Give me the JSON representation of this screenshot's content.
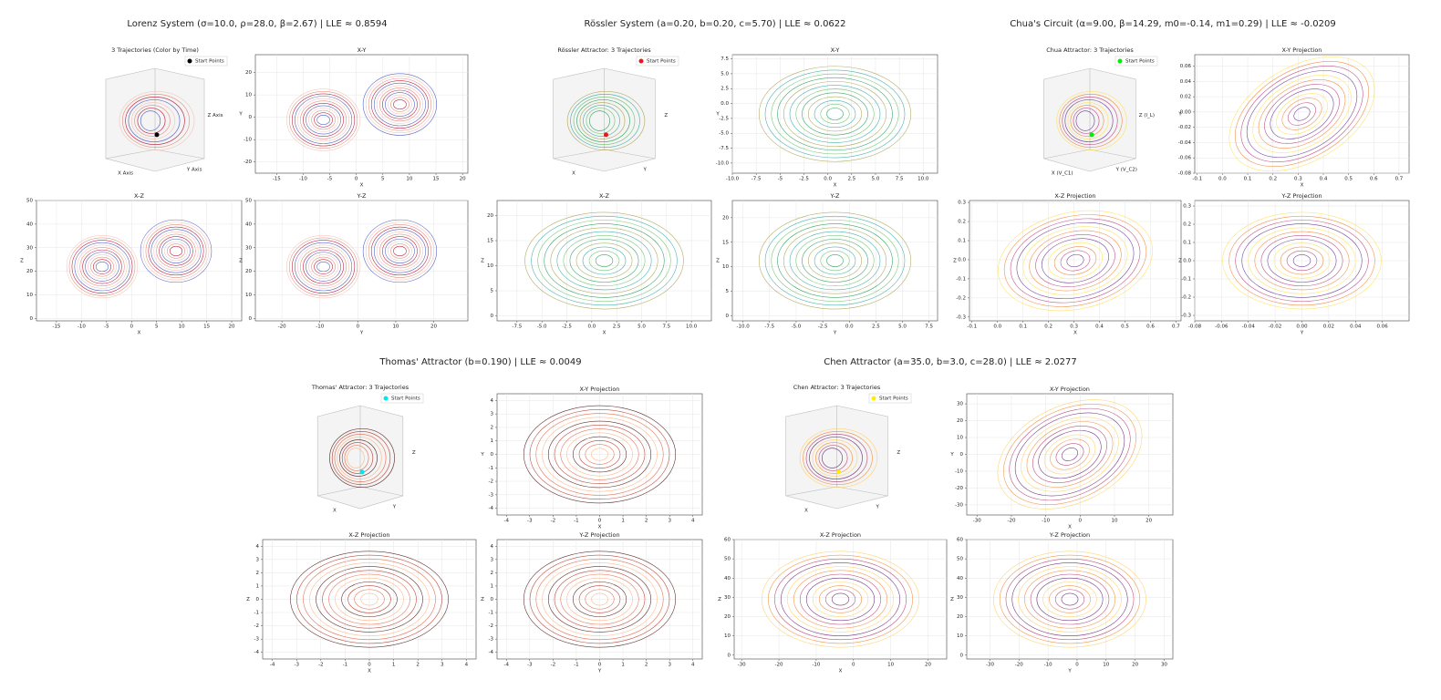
{
  "chart_data": [
    {
      "type": "line",
      "title": "Lorenz System (σ=10.0, ρ=28.0, β=2.67) | LLE ≈ 0.8594",
      "panels": [
        {
          "kind": "3d",
          "title": "3 Trajectories (Color by Time)",
          "legend": "Start Points",
          "start_color": "#000000",
          "xlabel": "X Axis",
          "ylabel": "Y Axis",
          "zlabel": "Z Axis"
        },
        {
          "kind": "2d",
          "title": "X-Y",
          "xlabel": "X",
          "ylabel": "Y",
          "xlim": [
            -19,
            21
          ],
          "ylim": [
            -25,
            28
          ],
          "xticks": [
            -15,
            -10,
            -5,
            0,
            5,
            10,
            15,
            20
          ],
          "yticks": [
            -20,
            -10,
            0,
            10,
            20
          ]
        },
        {
          "kind": "2d",
          "title": "X-Z",
          "xlabel": "X",
          "ylabel": "Z",
          "xlim": [
            -19,
            22
          ],
          "ylim": [
            -1,
            50
          ],
          "xticks": [
            -15,
            -10,
            -5,
            0,
            5,
            10,
            15,
            20
          ],
          "yticks": [
            0,
            10,
            20,
            30,
            40,
            50
          ]
        },
        {
          "kind": "2d",
          "title": "Y-Z",
          "xlabel": "Y",
          "ylabel": "Z",
          "xlim": [
            -27,
            29
          ],
          "ylim": [
            -1,
            50
          ],
          "xticks": [
            -20,
            -10,
            0,
            10,
            20
          ],
          "yticks": [
            0,
            10,
            20,
            30,
            40,
            50
          ]
        }
      ]
    },
    {
      "type": "line",
      "title": "Rössler System (a=0.20, b=0.20, c=5.70) | LLE ≈ 0.0622",
      "panels": [
        {
          "kind": "3d",
          "title": "Rössler Attractor: 3 Trajectories",
          "legend": "Start Points",
          "start_color": "#e41a1c",
          "xlabel": "X",
          "ylabel": "Y",
          "zlabel": "Z"
        },
        {
          "kind": "2d",
          "title": "X-Y",
          "xlabel": "X",
          "ylabel": "Y",
          "xlim": [
            -10,
            11.5
          ],
          "ylim": [
            -11.7,
            8.2
          ],
          "xticks": [
            {
              "value": -10,
              "label": "-10.0"
            },
            -7.5,
            -5,
            -2.5,
            {
              "value": 0,
              "label": "0.0"
            },
            2.5,
            {
              "value": 5,
              "label": "5.0"
            },
            7.5,
            {
              "value": 10,
              "label": "10.0"
            }
          ],
          "yticks": [
            {
              "value": -10,
              "label": "-10.0"
            },
            -7.5,
            {
              "value": -5,
              "label": "-5.0"
            },
            -2.5,
            {
              "value": 0,
              "label": "0.0"
            },
            2.5,
            {
              "value": 5,
              "label": "5.0"
            },
            7.5
          ]
        },
        {
          "kind": "2d",
          "title": "X-Z",
          "xlabel": "X",
          "ylabel": "Z",
          "xlim": [
            -9.5,
            12
          ],
          "ylim": [
            -1,
            23
          ],
          "xticks": [
            -7.5,
            {
              "value": -5,
              "label": "-5.0"
            },
            -2.5,
            {
              "value": 0,
              "label": "0.0"
            },
            2.5,
            {
              "value": 5,
              "label": "5.0"
            },
            7.5,
            {
              "value": 10,
              "label": "10.0"
            }
          ],
          "yticks": [
            0,
            5,
            10,
            15,
            20
          ]
        },
        {
          "kind": "2d",
          "title": "Y-Z",
          "xlabel": "Y",
          "ylabel": "Z",
          "xlim": [
            -11,
            8.3
          ],
          "ylim": [
            -1,
            23.5
          ],
          "xticks": [
            {
              "value": -10,
              "label": "-10.0"
            },
            -7.5,
            {
              "value": -5,
              "label": "-5.0"
            },
            -2.5,
            {
              "value": 0,
              "label": "0.0"
            },
            2.5,
            {
              "value": 5,
              "label": "5.0"
            },
            7.5
          ],
          "yticks": [
            0,
            5,
            10,
            15,
            20
          ]
        }
      ]
    },
    {
      "type": "line",
      "title": "Chua's Circuit (α=9.00, β=14.29, m0=-0.14, m1=0.29) | LLE ≈ -0.0209",
      "panels": [
        {
          "kind": "3d",
          "title": "Chua Attractor: 3 Trajectories",
          "legend": "Start Points",
          "start_color": "#00ee00",
          "xlabel": "X (V_C1)",
          "ylabel": "Y (V_C2)",
          "zlabel": "Z (I_L)"
        },
        {
          "kind": "2d",
          "title": "X-Y Projection",
          "xlabel": "X",
          "ylabel": "Y",
          "xlim": [
            -0.11,
            0.74
          ],
          "ylim": [
            -0.08,
            0.075
          ],
          "xticks": [
            -0.1,
            {
              "value": 0,
              "label": "0.0"
            },
            0.1,
            0.2,
            0.3,
            0.4,
            0.5,
            0.6,
            0.7
          ],
          "yticks": [
            -0.08,
            -0.06,
            -0.04,
            -0.02,
            {
              "value": 0,
              "label": "0.00"
            },
            0.02,
            0.04,
            0.06
          ]
        },
        {
          "kind": "2d",
          "title": "X-Z Projection",
          "xlabel": "X",
          "ylabel": "Z",
          "xlim": [
            -0.11,
            0.72
          ],
          "ylim": [
            -0.32,
            0.31
          ],
          "xticks": [
            -0.1,
            {
              "value": 0,
              "label": "0.0"
            },
            0.1,
            0.2,
            0.3,
            0.4,
            0.5,
            0.6,
            0.7
          ],
          "yticks": [
            -0.3,
            -0.2,
            -0.1,
            {
              "value": 0,
              "label": "0.0"
            },
            0.1,
            0.2,
            0.3
          ]
        },
        {
          "kind": "2d",
          "title": "Y-Z Projection",
          "xlabel": "Y",
          "ylabel": "Z",
          "xlim": [
            -0.08,
            0.08
          ],
          "ylim": [
            -0.33,
            0.33
          ],
          "xticks": [
            -0.08,
            -0.06,
            -0.04,
            -0.02,
            {
              "value": 0,
              "label": "0.00"
            },
            0.02,
            0.04,
            0.06
          ],
          "yticks": [
            -0.3,
            -0.2,
            -0.1,
            {
              "value": 0,
              "label": "0.0"
            },
            0.1,
            0.2,
            0.3
          ]
        }
      ]
    },
    {
      "type": "line",
      "title": "Thomas' Attractor (b=0.190) | LLE ≈ 0.0049",
      "panels": [
        {
          "kind": "3d",
          "title": "Thomas' Attractor: 3 Trajectories",
          "legend": "Start Points",
          "start_color": "#00e5ee",
          "xlabel": "X",
          "ylabel": "Y",
          "zlabel": "Z"
        },
        {
          "kind": "2d",
          "title": "X-Y Projection",
          "xlabel": "X",
          "ylabel": "Y",
          "xlim": [
            -4.4,
            4.4
          ],
          "ylim": [
            -4.5,
            4.5
          ],
          "xticks": [
            -4,
            -3,
            -2,
            -1,
            0,
            1,
            2,
            3,
            4
          ],
          "yticks": [
            -4,
            -3,
            -2,
            -1,
            0,
            1,
            2,
            3,
            4
          ]
        },
        {
          "kind": "2d",
          "title": "X-Z Projection",
          "xlabel": "X",
          "ylabel": "Z",
          "xlim": [
            -4.4,
            4.4
          ],
          "ylim": [
            -4.5,
            4.5
          ],
          "xticks": [
            -4,
            -3,
            -2,
            -1,
            0,
            1,
            2,
            3,
            4
          ],
          "yticks": [
            -4,
            -3,
            -2,
            -1,
            0,
            1,
            2,
            3,
            4
          ]
        },
        {
          "kind": "2d",
          "title": "Y-Z Projection",
          "xlabel": "Y",
          "ylabel": "Z",
          "xlim": [
            -4.4,
            4.4
          ],
          "ylim": [
            -4.5,
            4.5
          ],
          "xticks": [
            -4,
            -3,
            -2,
            -1,
            0,
            1,
            2,
            3,
            4
          ],
          "yticks": [
            -4,
            -3,
            -2,
            -1,
            0,
            1,
            2,
            3,
            4
          ]
        }
      ]
    },
    {
      "type": "line",
      "title": "Chen Attractor (a=35.0, b=3.0, c=28.0) | LLE ≈ 2.0277",
      "panels": [
        {
          "kind": "3d",
          "title": "Chen Attractor: 3 Trajectories",
          "legend": "Start Points",
          "start_color": "#ffee00",
          "xlabel": "X",
          "ylabel": "Y",
          "zlabel": "Z"
        },
        {
          "kind": "2d",
          "title": "X-Y Projection",
          "xlabel": "X",
          "ylabel": "Y",
          "xlim": [
            -33,
            27
          ],
          "ylim": [
            -36,
            36
          ],
          "xticks": [
            -30,
            -20,
            -10,
            0,
            10,
            20
          ],
          "yticks": [
            -30,
            -20,
            -10,
            0,
            10,
            20,
            30
          ]
        },
        {
          "kind": "2d",
          "title": "X-Z Projection",
          "xlabel": "X",
          "ylabel": "Z",
          "xlim": [
            -32,
            25
          ],
          "ylim": [
            -2,
            60
          ],
          "xticks": [
            -30,
            -20,
            -10,
            0,
            10,
            20
          ],
          "yticks": [
            0,
            10,
            20,
            30,
            40,
            50,
            60
          ]
        },
        {
          "kind": "2d",
          "title": "Y-Z Projection",
          "xlabel": "Y",
          "ylabel": "Z",
          "xlim": [
            -38,
            33
          ],
          "ylim": [
            -2,
            60
          ],
          "xticks": [
            -30,
            -20,
            -10,
            0,
            10,
            20,
            30
          ],
          "yticks": [
            0,
            10,
            20,
            30,
            40,
            50,
            60
          ]
        }
      ]
    }
  ]
}
